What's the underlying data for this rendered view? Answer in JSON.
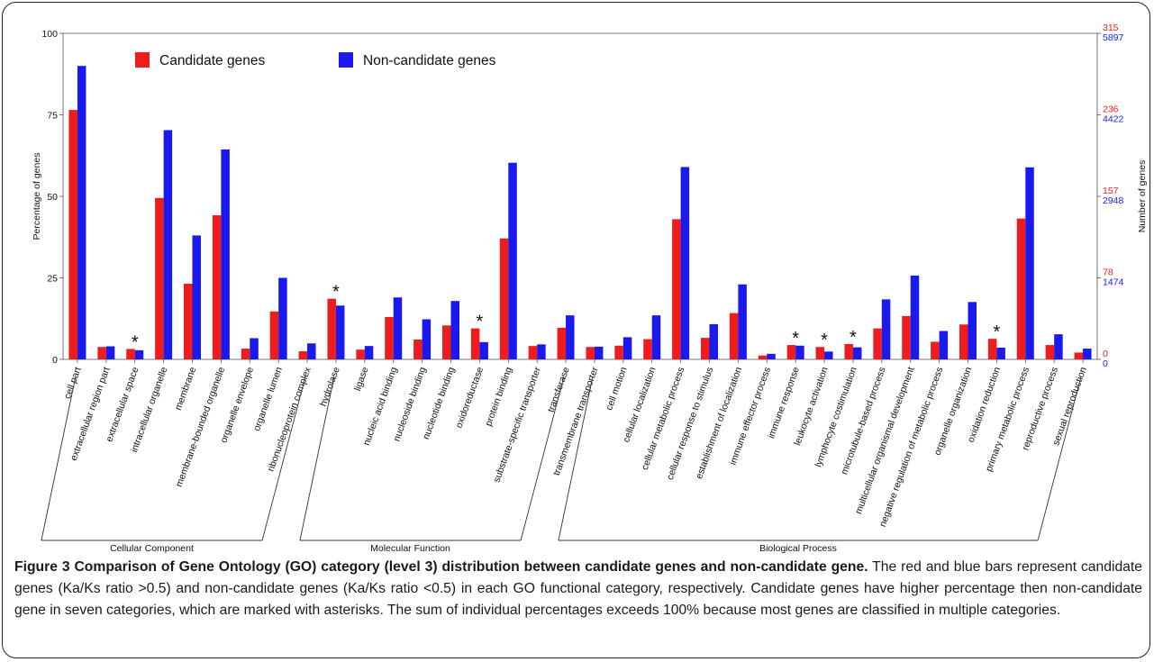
{
  "chart_data": {
    "type": "bar",
    "ylabel": "Percentage of genes",
    "ylabel_right": "Number of genes",
    "ylim": [
      0,
      100
    ],
    "y_ticks": [
      0,
      25,
      50,
      75,
      100
    ],
    "right_ticks_candidate": [
      0,
      78,
      157,
      236,
      315
    ],
    "right_ticks_noncandidate": [
      0,
      1474,
      2948,
      4422,
      5897
    ],
    "legend_position": "top-left",
    "series": [
      {
        "name": "Candidate genes",
        "color": "#ee1c1c",
        "values": [
          76.5,
          3.8,
          3.2,
          49.5,
          23.2,
          44.2,
          3.3,
          14.7,
          2.5,
          18.6,
          3.0,
          13.0,
          6.1,
          10.4,
          9.5,
          37.1,
          4.1,
          9.7,
          3.8,
          4.2,
          6.2,
          43.0,
          6.6,
          14.2,
          1.2,
          4.4,
          3.8,
          4.7,
          9.5,
          13.3,
          5.4,
          10.7,
          6.3,
          43.2,
          4.4,
          2.1
        ]
      },
      {
        "name": "Non-candidate genes",
        "color": "#1a1aee",
        "values": [
          90.0,
          4.0,
          2.8,
          70.3,
          38.0,
          64.4,
          6.5,
          25.0,
          4.9,
          16.5,
          4.1,
          19.0,
          12.3,
          17.9,
          5.3,
          60.3,
          4.6,
          13.5,
          3.9,
          6.8,
          13.5,
          59.0,
          10.8,
          23.0,
          1.7,
          4.2,
          2.4,
          3.7,
          18.4,
          25.7,
          8.7,
          17.6,
          3.6,
          58.9,
          7.7,
          3.3
        ]
      }
    ],
    "categories": [
      "cell part",
      "extracellular region part",
      "extracellular space",
      "intracellular organelle",
      "membrane",
      "membrane-bounded organelle",
      "organelle envelope",
      "organelle lumen",
      "ribonucleoprotein complex",
      "hydrolase",
      "ligase",
      "nucleic acid binding",
      "nucleoside binding",
      "nucleotide binding",
      "oxidoreductase",
      "protein binding",
      "substrate-specific transporter",
      "transferase",
      "transmembrane transporter",
      "cell motion",
      "cellular localization",
      "cellular metabolic process",
      "cellular response to stimulus",
      "establishment of localization",
      "immune effector process",
      "immune response",
      "leukocyte activation",
      "lymphocyte costimulation",
      "microtubule-based process",
      "multicellular organismal development",
      "negative regulation of metabolic process",
      "organelle organization",
      "oxidation reduction",
      "primary metabolic process",
      "reproductive process",
      "sexual reproduction"
    ],
    "asterisk_categories": [
      2,
      9,
      14,
      25,
      26,
      27,
      32
    ],
    "asterisk_symbol": "*",
    "groups": [
      {
        "label": "Cellular Component",
        "start": 0,
        "end": 8
      },
      {
        "label": "Molecular Function",
        "start": 9,
        "end": 17
      },
      {
        "label": "Biological Process",
        "start": 18,
        "end": 35
      }
    ]
  },
  "caption": {
    "title": "Figure 3 Comparison of Gene Ontology (GO) category (level 3) distribution between candidate genes and non-candidate gene.",
    "body": " The red and blue bars represent candidate genes (Ka/Ks ratio >0.5) and non-candidate genes (Ka/Ks ratio <0.5) in each GO functional category, respectively. Candidate genes have higher percentage then non-candidate gene in seven categories, which are marked with asterisks. The sum of individual percentages exceeds 100% because most genes are classified in multiple categories."
  }
}
